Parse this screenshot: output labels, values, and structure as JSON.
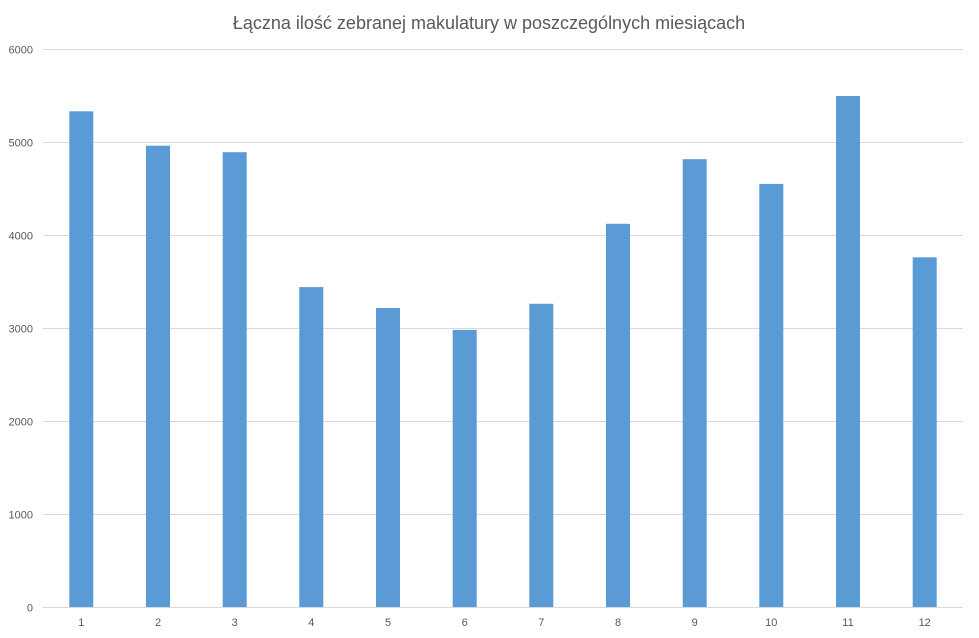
{
  "chart_data": {
    "type": "bar",
    "title": "Łączna ilość zebranej makulatury w poszczególnych miesiącach",
    "xlabel": "",
    "ylabel": "",
    "categories": [
      "1",
      "2",
      "3",
      "4",
      "5",
      "6",
      "7",
      "8",
      "9",
      "10",
      "11",
      "12"
    ],
    "series": [
      {
        "values": [
          5330,
          4960,
          4890,
          3440,
          3215,
          2980,
          3260,
          4120,
          4815,
          4550,
          5495,
          3760
        ],
        "color": "#5b9bd5"
      }
    ],
    "ylim": [
      0,
      6000
    ],
    "yticks": [
      "0",
      "1000",
      "2000",
      "3000",
      "4000",
      "5000",
      "6000"
    ],
    "grid": true,
    "legend": "none"
  }
}
